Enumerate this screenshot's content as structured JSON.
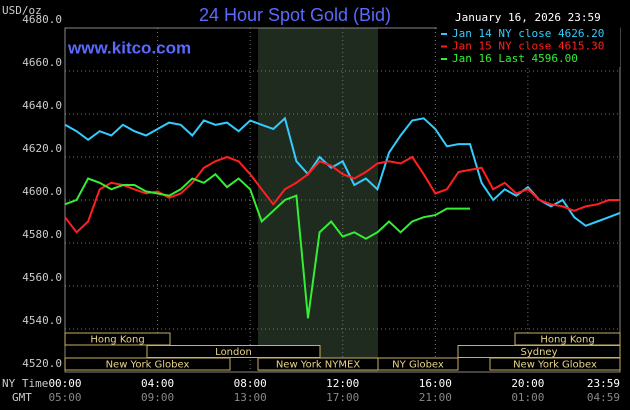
{
  "chart_data": {
    "type": "line",
    "title": "24 Hour Spot Gold (Bid)",
    "y_label": "USD/oz",
    "date": "January 16, 2026 23:59",
    "source": "www.kitco.com",
    "x_row_labels": [
      "NY Time",
      "GMT"
    ],
    "x": [
      0,
      0.5,
      1,
      1.5,
      2,
      2.5,
      3,
      3.5,
      4,
      4.5,
      5,
      5.5,
      6,
      6.5,
      7,
      7.5,
      8,
      8.5,
      9,
      9.5,
      10,
      10.5,
      11,
      11.5,
      12,
      12.5,
      13,
      13.5,
      14,
      14.5,
      15,
      15.5,
      16,
      16.5,
      17,
      17.5,
      18,
      18.5,
      19,
      19.5,
      20,
      20.5,
      21,
      21.5,
      22,
      22.5,
      23,
      23.5,
      23.98
    ],
    "xlim": [
      0,
      23.98
    ],
    "xticks": [
      {
        "value": 0,
        "label": "00:00"
      },
      {
        "value": 4,
        "label": "04:00"
      },
      {
        "value": 8,
        "label": "08:00"
      },
      {
        "value": 12,
        "label": "12:00"
      },
      {
        "value": 16,
        "label": "16:00"
      },
      {
        "value": 20,
        "label": "20:00"
      },
      {
        "value": 23.98,
        "label": "23:59"
      }
    ],
    "x2ticks": [
      {
        "value": 0,
        "label": "05:00"
      },
      {
        "value": 4,
        "label": "09:00"
      },
      {
        "value": 8,
        "label": "13:00"
      },
      {
        "value": 12,
        "label": "17:00"
      },
      {
        "value": 16,
        "label": "21:00"
      },
      {
        "value": 20,
        "label": "01:00"
      },
      {
        "value": 23.98,
        "label": "04:59"
      }
    ],
    "ylim": [
      4520,
      4680
    ],
    "yticks": [
      {
        "value": 4520,
        "label": "4520.0"
      },
      {
        "value": 4540,
        "label": "4540.0"
      },
      {
        "value": 4560,
        "label": "4560.0"
      },
      {
        "value": 4580,
        "label": "4580.0"
      },
      {
        "value": 4600,
        "label": "4600.0"
      },
      {
        "value": 4620,
        "label": "4620.0"
      },
      {
        "value": 4640,
        "label": "4640.0"
      },
      {
        "value": 4660,
        "label": "4660.0"
      },
      {
        "value": 4680,
        "label": "4680.0"
      }
    ],
    "grid": true,
    "legend": "top-right",
    "sessions": [
      "Hong Kong",
      "Hong Kong",
      "London",
      "Sydney",
      "New York Globex",
      "New York NYMEX",
      "NY Globex",
      "New York Globex"
    ],
    "series": [
      {
        "name": "Jan 14 NY close 4626.20",
        "color": "#33ccff",
        "values": [
          4635,
          4632,
          4628,
          4632,
          4630,
          4635,
          4632,
          4630,
          4633,
          4636,
          4635,
          4630,
          4637,
          4635,
          4636,
          4632,
          4637,
          4635,
          4633,
          4638,
          4618,
          4612,
          4620,
          4615,
          4618,
          4607,
          4610,
          4605,
          4622,
          4630,
          4637,
          4638,
          4633,
          4625,
          4626,
          4626,
          4608,
          4600,
          4605,
          4602,
          4606,
          4600,
          4597,
          4600,
          4592,
          4588,
          4590,
          4592,
          4594
        ]
      },
      {
        "name": "Jan 15 NY close 4615.30",
        "color": "#ff2020",
        "values": [
          4592,
          4585,
          4590,
          4605,
          4608,
          4607,
          4605,
          4603,
          4604,
          4601,
          4603,
          4608,
          4615,
          4618,
          4620,
          4618,
          4612,
          4605,
          4598,
          4605,
          4608,
          4612,
          4618,
          4616,
          4612,
          4610,
          4613,
          4617,
          4618,
          4617,
          4620,
          4612,
          4603,
          4605,
          4613,
          4614,
          4615,
          4605,
          4608,
          4603,
          4605,
          4600,
          4598,
          4597,
          4595,
          4597,
          4598,
          4600,
          4600
        ]
      },
      {
        "name": "Jan 16 Last 4596.00",
        "color": "#33ee33",
        "values": [
          4598,
          4600,
          4610,
          4608,
          4605,
          4607,
          4607,
          4604,
          4603,
          4602,
          4605,
          4610,
          4608,
          4612,
          4606,
          4610,
          4605,
          4590,
          4595,
          4600,
          4602,
          4545,
          4585,
          4590,
          4583,
          4585,
          4582,
          4585,
          4590,
          4585,
          4590,
          4592,
          4593,
          4596,
          4596,
          4596,
          null,
          null,
          null,
          null,
          null,
          null,
          null,
          null,
          null,
          null,
          null,
          null,
          null
        ]
      }
    ]
  }
}
